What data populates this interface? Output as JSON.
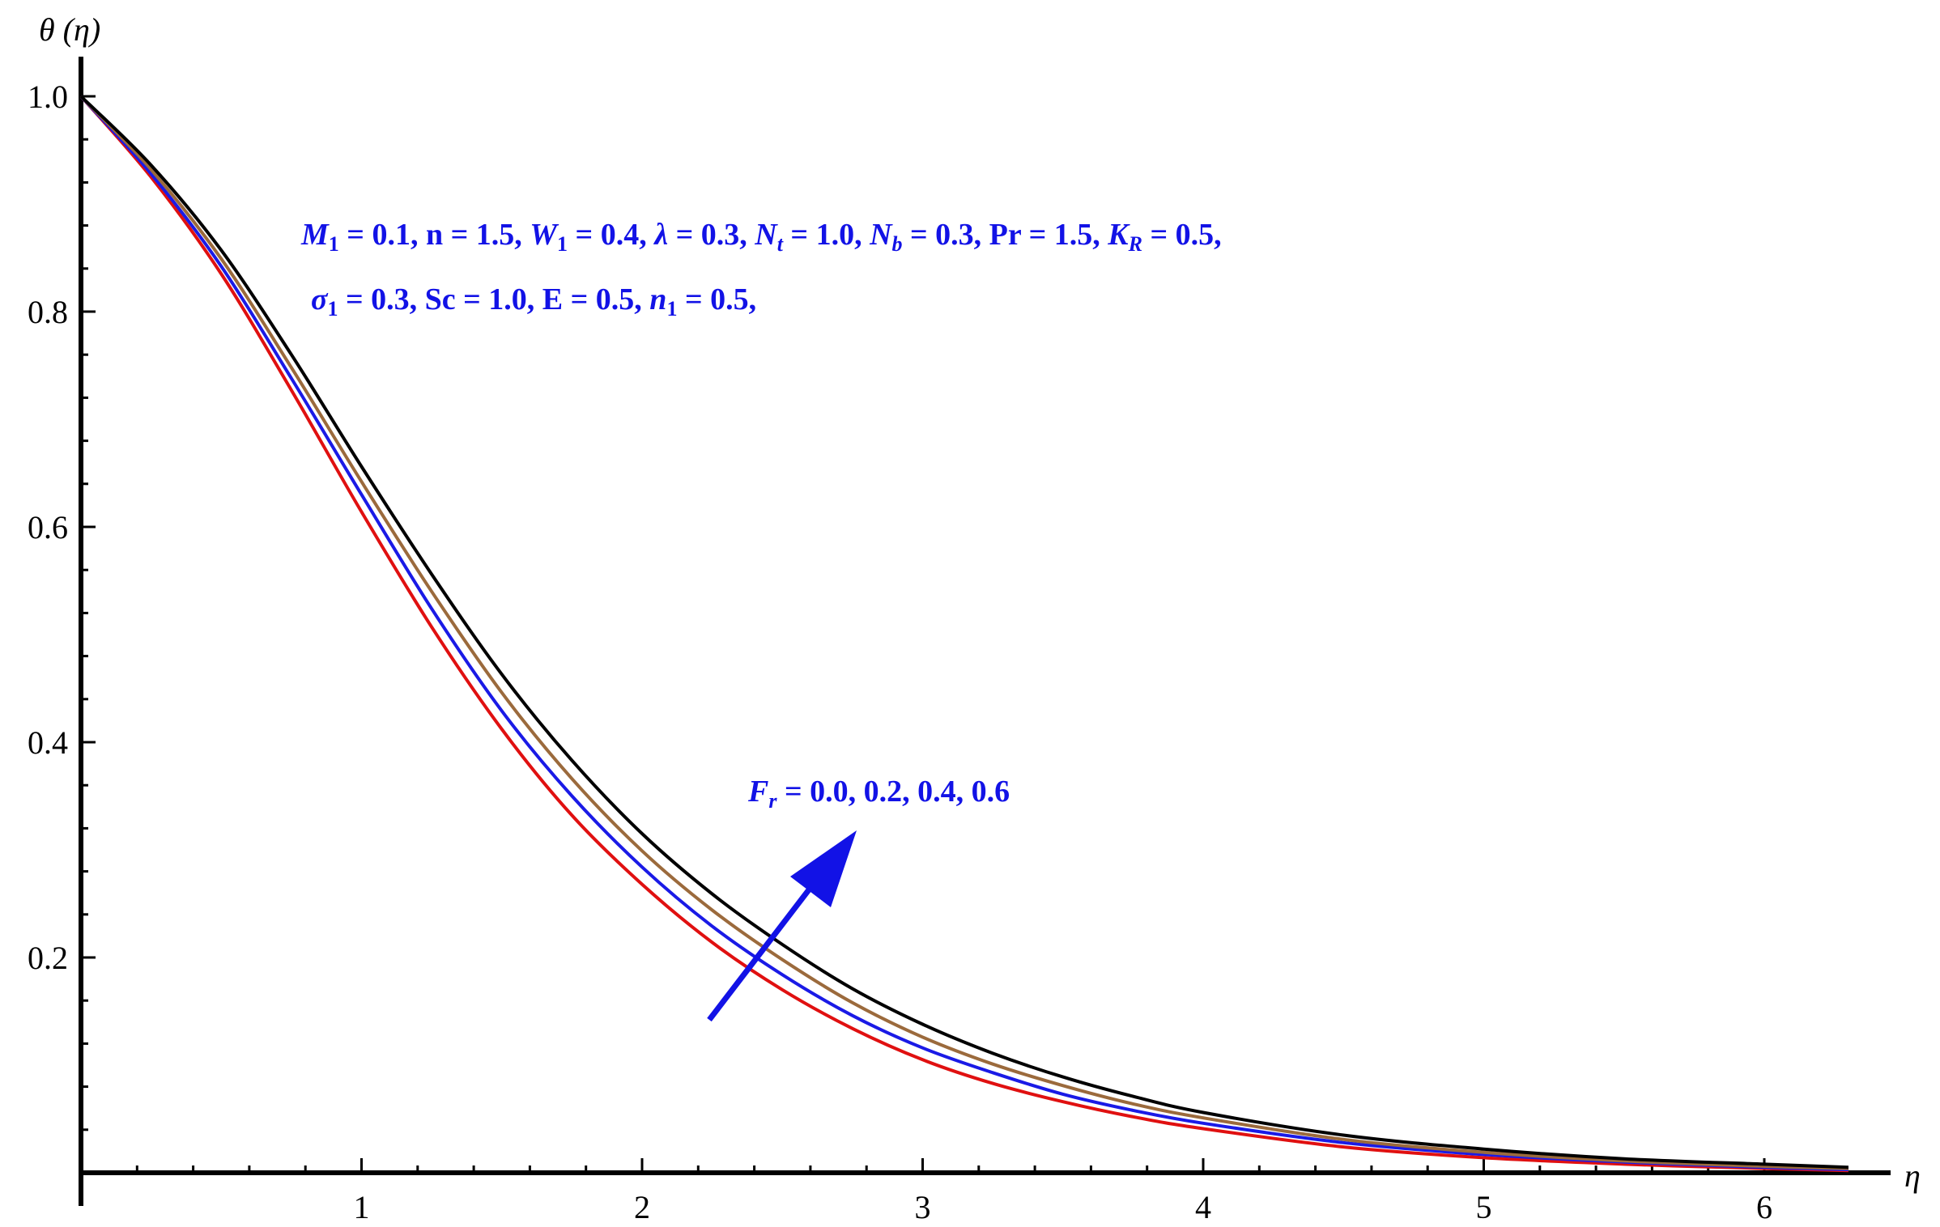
{
  "chart_data": {
    "type": "line",
    "title": "",
    "xlabel": "η",
    "ylabel": "θ (η)",
    "xlim": [
      0,
      6.4
    ],
    "ylim": [
      0,
      1.03
    ],
    "x_ticks": [
      1,
      2,
      3,
      4,
      5,
      6
    ],
    "y_ticks": [
      0.2,
      0.4,
      0.6,
      0.8,
      1.0
    ],
    "x_tick_labels": [
      "1",
      "2",
      "3",
      "4",
      "5",
      "6"
    ],
    "y_tick_labels": [
      "0.2",
      "0.4",
      "0.6",
      "0.8",
      "1.0"
    ],
    "grid": false,
    "x": [
      0,
      0.25,
      0.5,
      0.75,
      1.0,
      1.25,
      1.5,
      1.75,
      2.0,
      2.25,
      2.5,
      2.75,
      3.0,
      3.25,
      3.5,
      3.75,
      4.0,
      4.5,
      5.0,
      5.5,
      6.0,
      6.3
    ],
    "series": [
      {
        "color": "#e01010",
        "values": [
          1.0,
          0.925,
          0.835,
          0.727,
          0.614,
          0.507,
          0.412,
          0.332,
          0.268,
          0.214,
          0.17,
          0.134,
          0.105,
          0.083,
          0.066,
          0.052,
          0.041,
          0.024,
          0.014,
          0.008,
          0.004,
          0.002
        ]
      },
      {
        "color": "#1a1ae6",
        "values": [
          1.0,
          0.928,
          0.842,
          0.738,
          0.63,
          0.524,
          0.429,
          0.35,
          0.284,
          0.229,
          0.184,
          0.146,
          0.116,
          0.093,
          0.073,
          0.058,
          0.046,
          0.028,
          0.017,
          0.01,
          0.005,
          0.003
        ]
      },
      {
        "color": "#9b6a3c",
        "values": [
          1.0,
          0.932,
          0.849,
          0.748,
          0.642,
          0.54,
          0.446,
          0.366,
          0.299,
          0.244,
          0.198,
          0.158,
          0.126,
          0.101,
          0.081,
          0.064,
          0.051,
          0.031,
          0.019,
          0.011,
          0.006,
          0.004
        ]
      },
      {
        "color": "#000000",
        "values": [
          1.0,
          0.936,
          0.857,
          0.76,
          0.656,
          0.556,
          0.463,
          0.383,
          0.315,
          0.259,
          0.212,
          0.171,
          0.138,
          0.111,
          0.089,
          0.071,
          0.056,
          0.035,
          0.022,
          0.013,
          0.008,
          0.005
        ]
      }
    ],
    "annotations": {
      "params_line1": "M1 = 0.1, n = 1.5, W1 = 0.4, λ = 0.3, Nt = 1.0, Nb = 0.3, Pr = 1.5, KR = 0.5,",
      "params_line2": "σ1 = 0.3, Sc = 1.0, E = 0.5, n1 = 0.5,",
      "arrow_label": "Fr = 0.0, 0.2, 0.4, 0.6",
      "arrow_color": "#1212e6"
    }
  }
}
